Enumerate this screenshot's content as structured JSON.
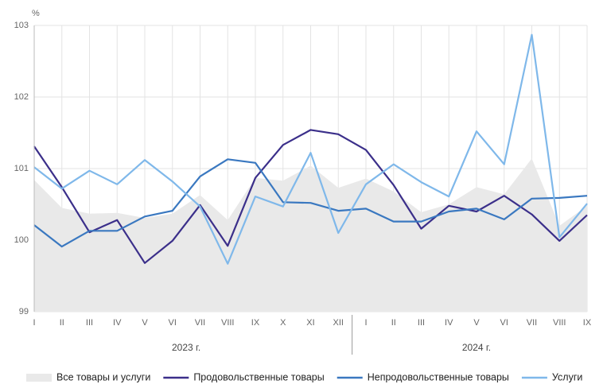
{
  "chart_data": {
    "type": "line",
    "unit": "%",
    "groups": [
      {
        "label": "2023 г.",
        "categories": [
          "I",
          "II",
          "III",
          "IV",
          "V",
          "VI",
          "VII",
          "VIII",
          "IX",
          "X",
          "XI",
          "XII"
        ]
      },
      {
        "label": "2024 г.",
        "categories": [
          "I",
          "II",
          "III",
          "IV",
          "V",
          "VI",
          "VII",
          "VIII",
          "IX"
        ]
      }
    ],
    "ylim": [
      99,
      103
    ],
    "yticks": [
      99,
      100,
      101,
      102,
      103
    ],
    "grid": true,
    "series": [
      {
        "name": "Все товары и услуги",
        "type": "area",
        "color": "#e9e9e9",
        "values": [
          100.84,
          100.45,
          100.37,
          100.38,
          100.31,
          100.37,
          100.63,
          100.28,
          100.87,
          100.83,
          101.04,
          100.73,
          100.86,
          100.68,
          100.39,
          100.5,
          100.74,
          100.64,
          101.14,
          100.2,
          100.48
        ]
      },
      {
        "name": "Продовольственные товары",
        "type": "line",
        "color": "#3b2f8a",
        "values": [
          101.31,
          100.74,
          100.11,
          100.28,
          99.68,
          99.99,
          100.49,
          99.92,
          100.87,
          101.33,
          101.54,
          101.48,
          101.26,
          100.77,
          100.16,
          100.48,
          100.4,
          100.62,
          100.36,
          99.99,
          100.35
        ]
      },
      {
        "name": "Непродовольственные товары",
        "type": "line",
        "color": "#3a78c0",
        "values": [
          100.21,
          99.91,
          100.13,
          100.13,
          100.33,
          100.41,
          100.89,
          101.13,
          101.08,
          100.53,
          100.52,
          100.41,
          100.44,
          100.26,
          100.26,
          100.4,
          100.44,
          100.29,
          100.58,
          100.59,
          100.62
        ]
      },
      {
        "name": "Услуги",
        "type": "line",
        "color": "#7fb8ea",
        "values": [
          101.02,
          100.72,
          100.97,
          100.78,
          101.12,
          100.82,
          100.47,
          99.67,
          100.61,
          100.47,
          101.22,
          100.1,
          100.78,
          101.06,
          100.81,
          100.61,
          101.52,
          101.06,
          102.87,
          100.04,
          100.51
        ]
      }
    ]
  }
}
